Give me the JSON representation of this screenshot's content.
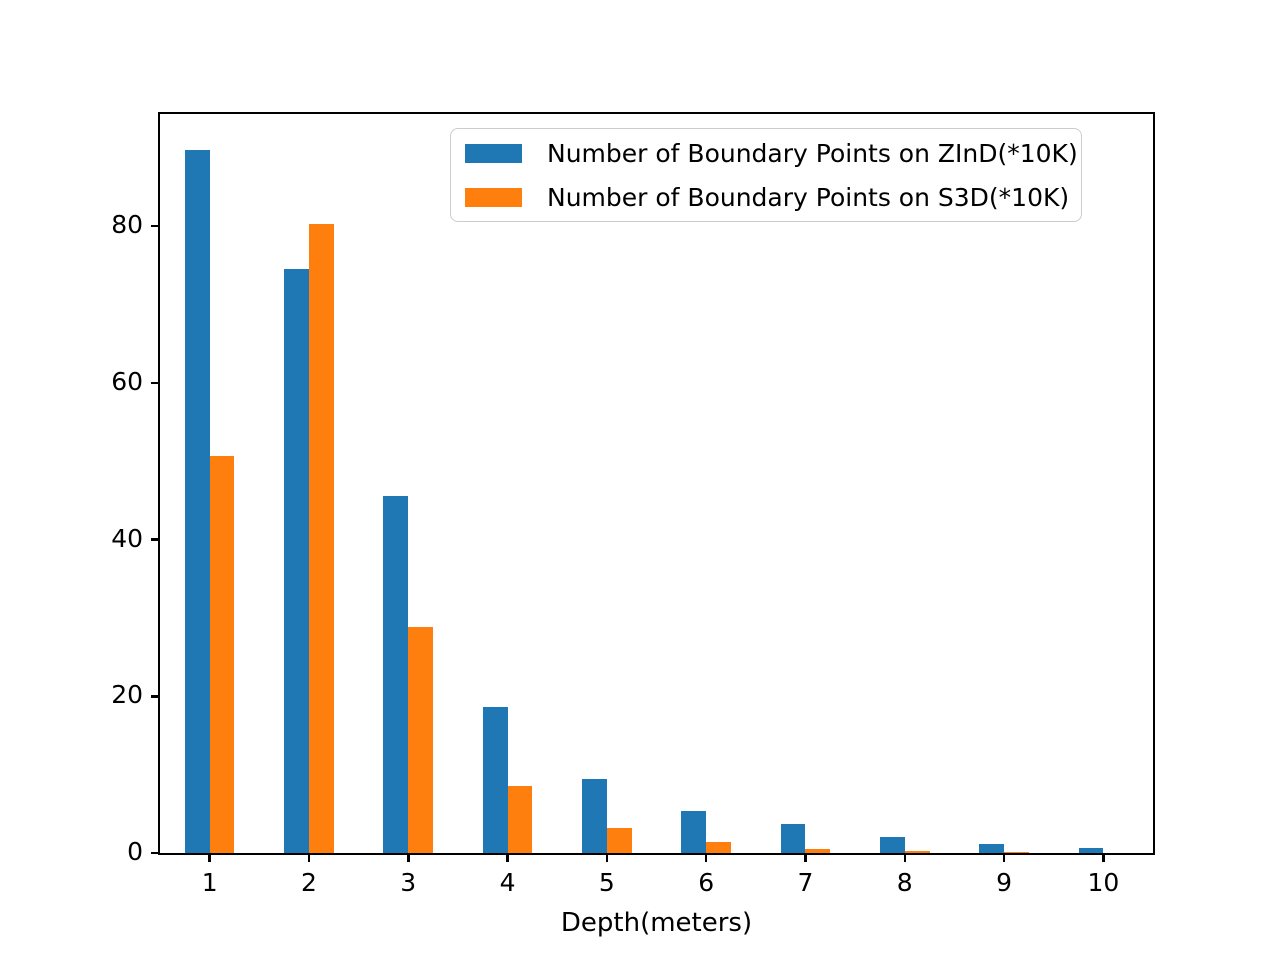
{
  "chart_data": {
    "type": "bar",
    "title": "",
    "xlabel": "Depth(meters)",
    "ylabel": "",
    "categories": [
      "1",
      "2",
      "3",
      "4",
      "5",
      "6",
      "7",
      "8",
      "9",
      "10"
    ],
    "series": [
      {
        "name": "Number of Boundary Points on ZInD(*10K)",
        "color": "#1f77b4",
        "values": [
          89.7,
          74.5,
          45.6,
          18.6,
          9.5,
          5.4,
          3.7,
          2.1,
          1.2,
          0.6
        ]
      },
      {
        "name": "Number of Boundary Points on S3D(*10K)",
        "color": "#ff7f0e",
        "values": [
          50.6,
          80.2,
          28.8,
          8.6,
          3.2,
          1.4,
          0.5,
          0.3,
          0.1,
          0.05
        ]
      }
    ],
    "ylim": [
      0,
      94.3
    ],
    "yticks": [
      0,
      20,
      40,
      60,
      80
    ],
    "bar_width_fraction": 0.25,
    "grid": false,
    "legend_position": "upper right",
    "axis_color": "#000000",
    "background_color": "#ffffff"
  }
}
